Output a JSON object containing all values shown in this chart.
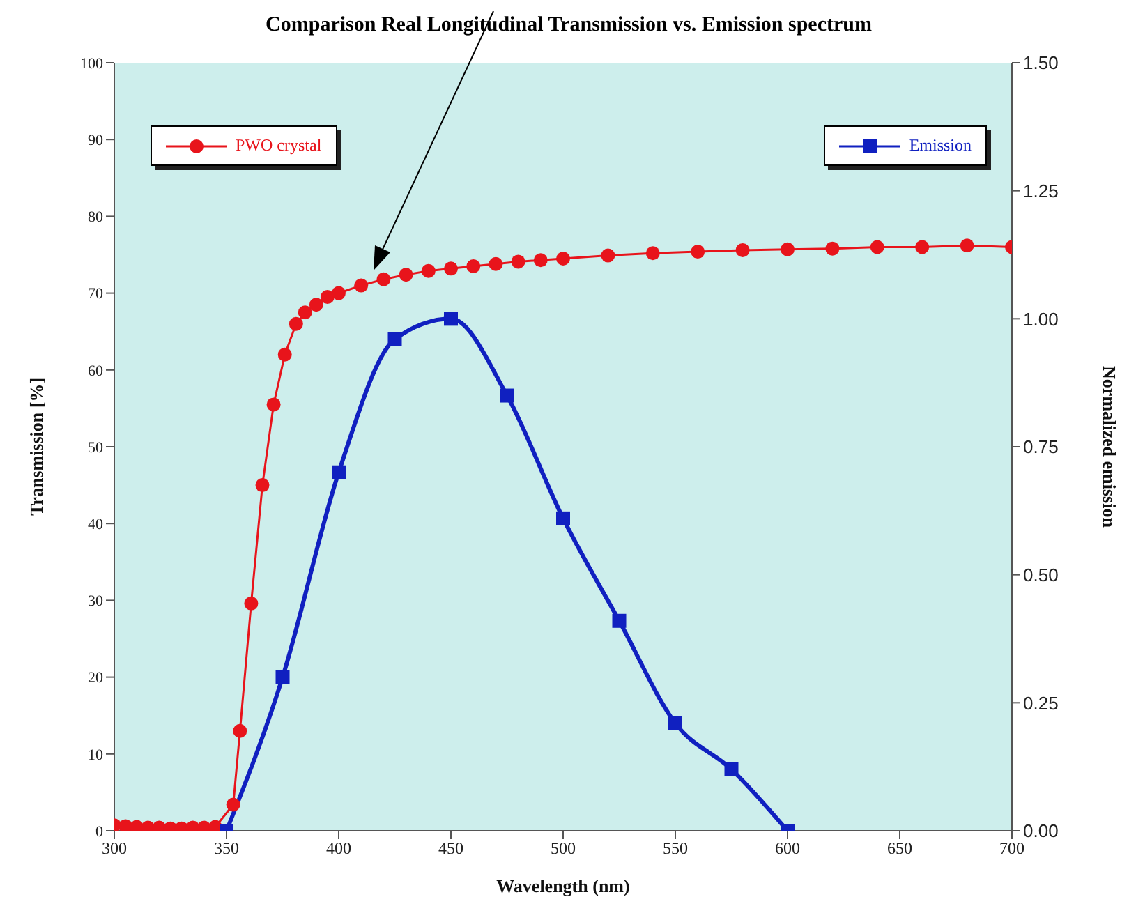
{
  "chart_data": {
    "type": "line",
    "title": "Comparison Real Longitudinal Transmission vs. Emission spectrum",
    "xlabel": "Wavelength (nm)",
    "ylabel": "Transmission [%]",
    "y2label": "Normalized emission",
    "series": [
      {
        "name": "PWO crystal",
        "color": "#e8141b",
        "marker": "circle",
        "axis": "y",
        "x": [
          300,
          305,
          310,
          315,
          320,
          325,
          330,
          335,
          340,
          345,
          353,
          356,
          361,
          366,
          371,
          376,
          381,
          385,
          390,
          395,
          400,
          410,
          420,
          430,
          440,
          450,
          460,
          470,
          480,
          490,
          500,
          520,
          540,
          560,
          580,
          600,
          620,
          640,
          660,
          680,
          700
        ],
        "values": [
          0.7,
          0.6,
          0.5,
          0.4,
          0.4,
          0.3,
          0.3,
          0.4,
          0.4,
          0.5,
          3.4,
          13,
          29.6,
          45,
          55.5,
          62,
          66,
          67.5,
          68.5,
          69.5,
          70,
          71,
          71.8,
          72.4,
          72.9,
          73.2,
          73.5,
          73.8,
          74.1,
          74.3,
          74.5,
          74.9,
          75.2,
          75.4,
          75.6,
          75.7,
          75.8,
          76,
          76,
          76.2,
          76
        ]
      },
      {
        "name": "Emission",
        "color": "#1020c0",
        "marker": "square",
        "axis": "y2",
        "x": [
          350,
          375,
          400,
          425,
          450,
          475,
          500,
          525,
          550,
          575,
          600
        ],
        "values": [
          0,
          0.3,
          0.7,
          0.96,
          1.0,
          0.85,
          0.61,
          0.41,
          0.21,
          0.12,
          0
        ]
      }
    ],
    "xlim": [
      300,
      700
    ],
    "xticks": [
      300,
      350,
      400,
      450,
      500,
      550,
      600,
      650,
      700
    ],
    "ylim": [
      0,
      100
    ],
    "yticks": [
      0,
      10,
      20,
      30,
      40,
      50,
      60,
      70,
      80,
      90,
      100
    ],
    "y2lim": [
      0,
      1.5
    ],
    "y2ticks": [
      {
        "value": 0,
        "label": "0.00"
      },
      {
        "value": 0.25,
        "label": "0.25"
      },
      {
        "value": 0.5,
        "label": "0.50"
      },
      {
        "value": 0.75,
        "label": "0.75"
      },
      {
        "value": 1,
        "label": "1.00"
      },
      {
        "value": 1.25,
        "label": "1.25"
      },
      {
        "value": 1.5,
        "label": "1.50"
      }
    ],
    "legend": "top",
    "line_style": "solid"
  }
}
